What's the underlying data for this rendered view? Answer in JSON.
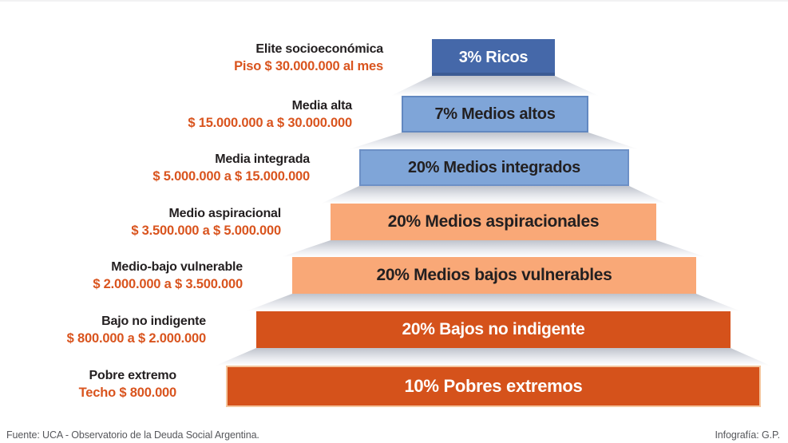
{
  "levels": [
    {
      "label": "Elite socioeconómica",
      "range": "Piso $ 30.000.000 al mes",
      "bar_text": "3% Ricos",
      "percent": 3,
      "bar_color": "#4568a9",
      "bar_text_color": "#ffffff"
    },
    {
      "label": "Media alta",
      "range": "$ 15.000.000 a $ 30.000.000",
      "bar_text": "7% Medios altos",
      "percent": 7,
      "bar_color": "#7fa5d8",
      "bar_text_color": "#232021"
    },
    {
      "label": "Media integrada",
      "range": "$ 5.000.000 a $ 15.000.000",
      "bar_text": "20% Medios integrados",
      "percent": 20,
      "bar_color": "#7fa5d8",
      "bar_text_color": "#232021"
    },
    {
      "label": "Medio aspiracional",
      "range": "$ 3.500.000 a $ 5.000.000",
      "bar_text": "20% Medios aspiracionales",
      "percent": 20,
      "bar_color": "#f9a877",
      "bar_text_color": "#232021"
    },
    {
      "label": "Medio-bajo vulnerable",
      "range": "$ 2.000.000 a $ 3.500.000",
      "bar_text": "20% Medios bajos vulnerables",
      "percent": 20,
      "bar_color": "#f9a877",
      "bar_text_color": "#232021"
    },
    {
      "label": "Bajo no indigente",
      "range": "$ 800.000 a $ 2.000.000",
      "bar_text": "20% Bajos no indigente",
      "percent": 20,
      "bar_color": "#d5521b",
      "bar_text_color": "#ffffff"
    },
    {
      "label": "Pobre extremo",
      "range": "Techo $ 800.000",
      "bar_text": "10% Pobres extremos",
      "percent": 10,
      "bar_color": "#d5521b",
      "bar_text_color": "#ffffff"
    }
  ],
  "footer": {
    "source": "Fuente: UCA - Observatorio de la Deuda Social Argentina.",
    "credit": "Infografía: G.P."
  },
  "colors": {
    "dark_blue": "#4568a9",
    "light_blue": "#7fa5d8",
    "peach": "#f9a877",
    "dark_orange": "#d5521b",
    "range_text_orange": "#d9541e",
    "label_black": "#231f20",
    "footer_gray": "#56575b"
  },
  "chart_data": {
    "type": "bar",
    "subtype": "pyramid",
    "orientation": "horizontal-centered",
    "categories": [
      "Elite socioeconómica",
      "Media alta",
      "Media integrada",
      "Medio aspiracional",
      "Medio-bajo vulnerable",
      "Bajo no indigente",
      "Pobre extremo"
    ],
    "values": [
      3,
      7,
      20,
      20,
      20,
      20,
      10
    ],
    "value_unit": "%",
    "segment_labels": [
      "3% Ricos",
      "7% Medios altos",
      "20% Medios integrados",
      "20% Medios aspiracionales",
      "20% Medios bajos vulnerables",
      "20% Bajos no indigente",
      "10% Pobres extremos"
    ],
    "income_ranges_monthly_ars": [
      "Piso $ 30.000.000 al mes",
      "$ 15.000.000 a $ 30.000.000",
      "$ 5.000.000 a $ 15.000.000",
      "$ 3.500.000 a $ 5.000.000",
      "$ 2.000.000 a $ 3.500.000",
      "$ 800.000 a $ 2.000.000",
      "Techo $ 800.000"
    ],
    "segment_colors": [
      "#4568a9",
      "#7fa5d8",
      "#7fa5d8",
      "#f9a877",
      "#f9a877",
      "#d5521b",
      "#d5521b"
    ],
    "source": "Fuente: UCA - Observatorio de la Deuda Social Argentina.",
    "credit": "Infografía: G.P.",
    "legend_position": "none",
    "grid": false
  }
}
